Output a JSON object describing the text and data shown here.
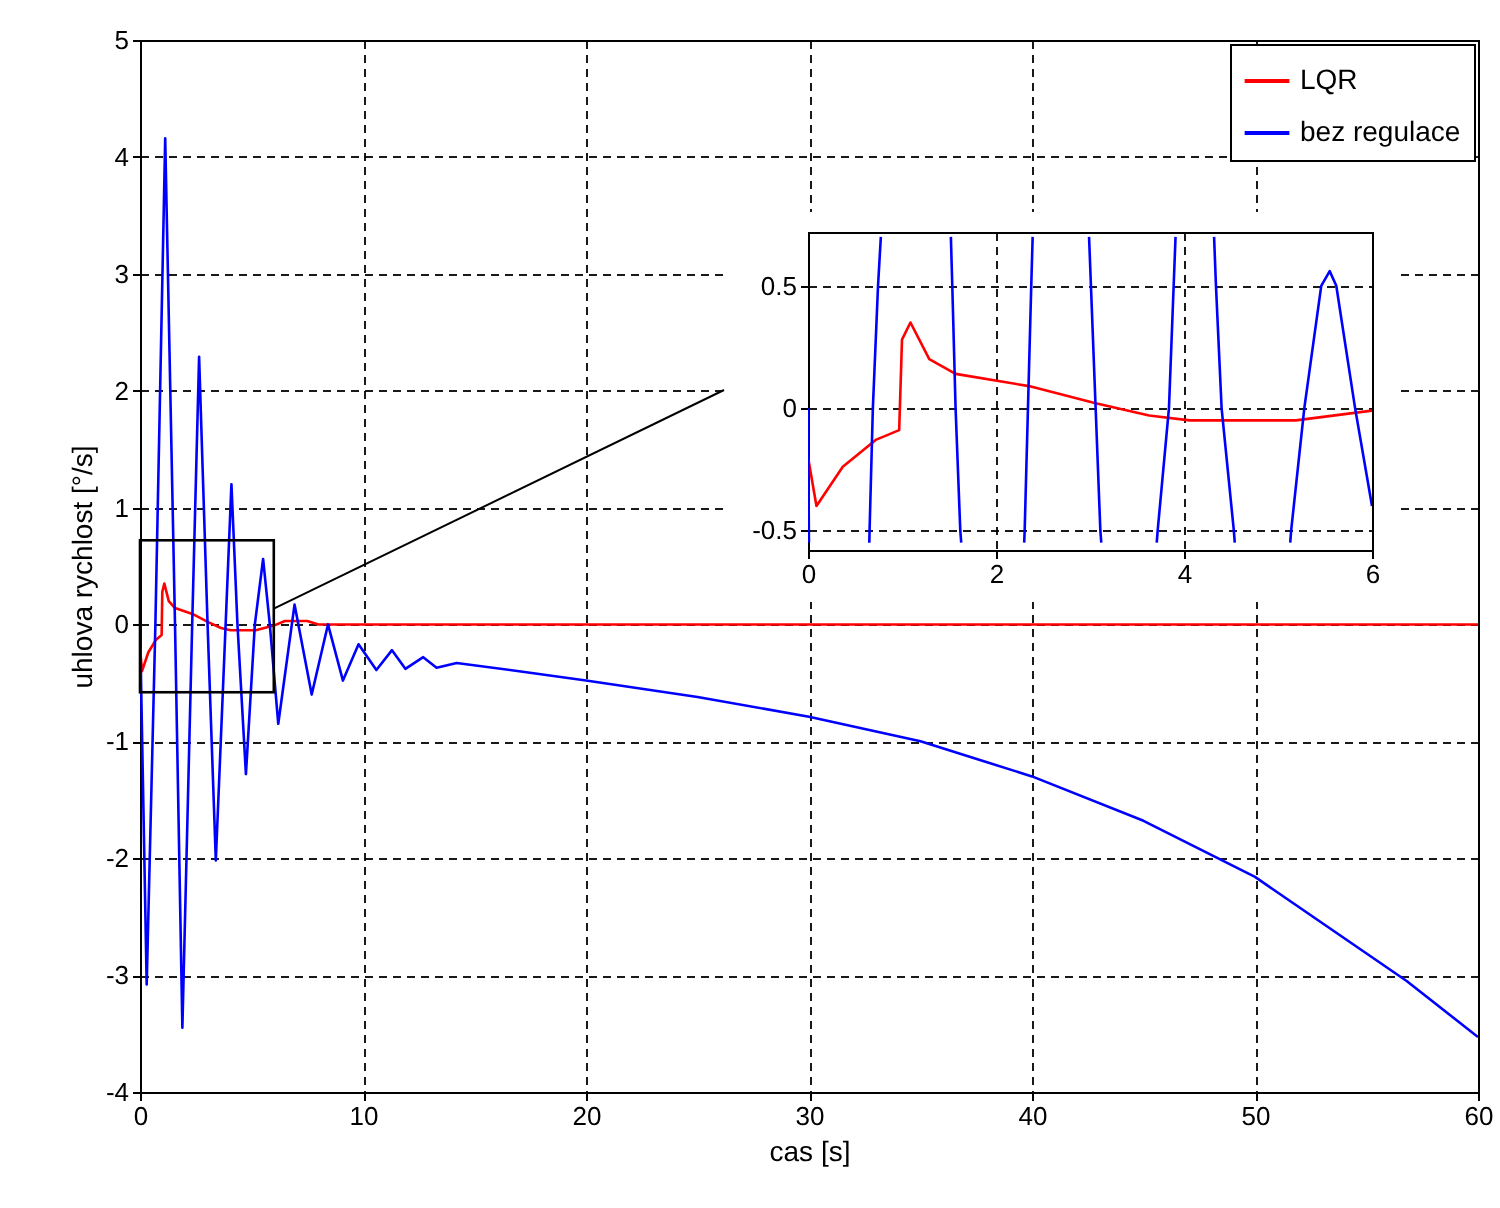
{
  "chart_data": [
    {
      "type": "line",
      "xlabel": "cas [s]",
      "ylabel": "uhlova rychlost [°/s]",
      "xlim": [
        0,
        60
      ],
      "ylim": [
        -4,
        5
      ],
      "xticks": [
        0,
        10,
        20,
        30,
        40,
        50,
        60
      ],
      "yticks": [
        -4,
        -3,
        -2,
        -1,
        0,
        1,
        2,
        3,
        4,
        5
      ],
      "grid": true,
      "legend": "top right",
      "line_style": "solid",
      "series": [
        {
          "name": "LQR",
          "color": "#ff0000",
          "x": [
            0,
            0.09,
            0.37,
            0.72,
            0.97,
            1.0,
            1.09,
            1.29,
            1.57,
            2.35,
            3.06,
            3.63,
            4.06,
            5.19,
            6.0,
            6.5,
            7.5,
            8,
            60
          ],
          "values": [
            -0.2,
            -0.4,
            -0.24,
            -0.13,
            -0.09,
            0.28,
            0.35,
            0.2,
            0.14,
            0.09,
            0.02,
            -0.03,
            -0.05,
            -0.05,
            -0.01,
            0.03,
            0.03,
            0,
            0
          ]
        },
        {
          "name": "bez regulace",
          "color": "#0000ff",
          "x": [
            0,
            0.3,
            0.69,
            1.13,
            1.57,
            1.9,
            2.34,
            2.65,
            3.03,
            3.4,
            3.84,
            4.1,
            4.37,
            4.75,
            5.15,
            5.52,
            5.82,
            6.2,
            6.93,
            7.7,
            8.43,
            9.1,
            9.8,
            10.6,
            11.3,
            11.9,
            12.7,
            13.3,
            14.2,
            17,
            20,
            25,
            30,
            35,
            40,
            45,
            50,
            56.8,
            60
          ],
          "values": [
            0,
            -3.08,
            0,
            4.16,
            0,
            -3.45,
            0,
            2.29,
            0,
            -2.02,
            0,
            1.2,
            0,
            -1.28,
            0,
            0.56,
            0,
            -0.85,
            0.17,
            -0.6,
            0,
            -0.48,
            -0.17,
            -0.39,
            -0.22,
            -0.38,
            -0.28,
            -0.37,
            -0.33,
            -0.4,
            -0.48,
            -0.62,
            -0.79,
            -1.0,
            -1.3,
            -1.68,
            -2.16,
            -3.05,
            -3.53
          ]
        }
      ]
    },
    {
      "type": "line",
      "xlim": [
        0,
        6
      ],
      "ylim": [
        -0.58,
        0.72
      ],
      "xticks": [
        0,
        2,
        4,
        6
      ],
      "yticks": [
        -0.5,
        0,
        0.5
      ],
      "grid": true,
      "line_style": "solid",
      "series": [
        {
          "color": "#ff0000",
          "x": [
            0,
            0.09,
            0.37,
            0.72,
            0.97,
            1.0,
            1.09,
            1.29,
            1.57,
            2.35,
            3.06,
            3.63,
            4.06,
            5.19,
            6.0
          ],
          "values": [
            -0.2,
            -0.4,
            -0.24,
            -0.13,
            -0.09,
            0.28,
            0.35,
            0.2,
            0.14,
            0.09,
            0.02,
            -0.03,
            -0.05,
            -0.05,
            -0.01
          ]
        },
        {
          "color": "#0000ff",
          "x": [
            0,
            0.009,
            0.01,
            0.3,
            0.652,
            0.655,
            0.69,
            0.745,
            0.775,
            1.2,
            1.52,
            1.535,
            1.57,
            1.62,
            1.63,
            2.0,
            2.3,
            2.305,
            2.34,
            2.375,
            2.39,
            2.7,
            2.99,
            3.01,
            3.06,
            3.11,
            3.12,
            3.4,
            3.71,
            3.72,
            3.84,
            3.89,
            3.91,
            4.1,
            4.32,
            4.34,
            4.4,
            4.53,
            4.54,
            4.8,
            5.13,
            5.14,
            5.28,
            5.46,
            5.55,
            5.62,
            5.82,
            6.0
          ],
          "values": [
            0,
            -0.5,
            -0.55,
            null,
            -0.55,
            -0.5,
            0,
            0.5,
            0.7,
            null,
            0.7,
            0.5,
            0,
            -0.5,
            -0.55,
            null,
            -0.55,
            -0.5,
            0,
            0.5,
            0.7,
            null,
            0.7,
            0.5,
            0,
            -0.5,
            -0.55,
            null,
            -0.55,
            -0.5,
            0,
            0.5,
            0.7,
            null,
            0.7,
            0.5,
            0,
            -0.5,
            -0.55,
            null,
            -0.55,
            -0.5,
            0,
            0.5,
            0.56,
            0.5,
            0,
            -0.4
          ]
        }
      ]
    }
  ]
}
